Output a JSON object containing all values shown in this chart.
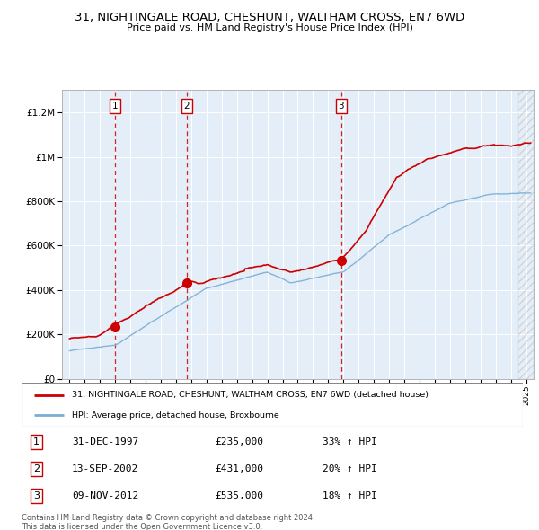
{
  "title": "31, NIGHTINGALE ROAD, CHESHUNT, WALTHAM CROSS, EN7 6WD",
  "subtitle": "Price paid vs. HM Land Registry's House Price Index (HPI)",
  "ytick_values": [
    0,
    200000,
    400000,
    600000,
    800000,
    1000000,
    1200000
  ],
  "ylim": [
    0,
    1300000
  ],
  "xlim_start": 1994.5,
  "xlim_end": 2025.5,
  "transactions": [
    {
      "num": 1,
      "date_str": "31-DEC-1997",
      "price": 235000,
      "pct": "33%",
      "x_year": 1997.99
    },
    {
      "num": 2,
      "date_str": "13-SEP-2002",
      "price": 431000,
      "pct": "20%",
      "x_year": 2002.7
    },
    {
      "num": 3,
      "date_str": "09-NOV-2012",
      "price": 535000,
      "pct": "18%",
      "x_year": 2012.86
    }
  ],
  "legend_label_red": "31, NIGHTINGALE ROAD, CHESHUNT, WALTHAM CROSS, EN7 6WD (detached house)",
  "legend_label_blue": "HPI: Average price, detached house, Broxbourne",
  "footer_line1": "Contains HM Land Registry data © Crown copyright and database right 2024.",
  "footer_line2": "This data is licensed under the Open Government Licence v3.0.",
  "bg_color": "#e4eef8",
  "red_color": "#cc0000",
  "blue_color": "#7aadd4",
  "grid_color": "#ffffff",
  "dashed_color": "#cc0000",
  "hatch_color": "#cccccc"
}
